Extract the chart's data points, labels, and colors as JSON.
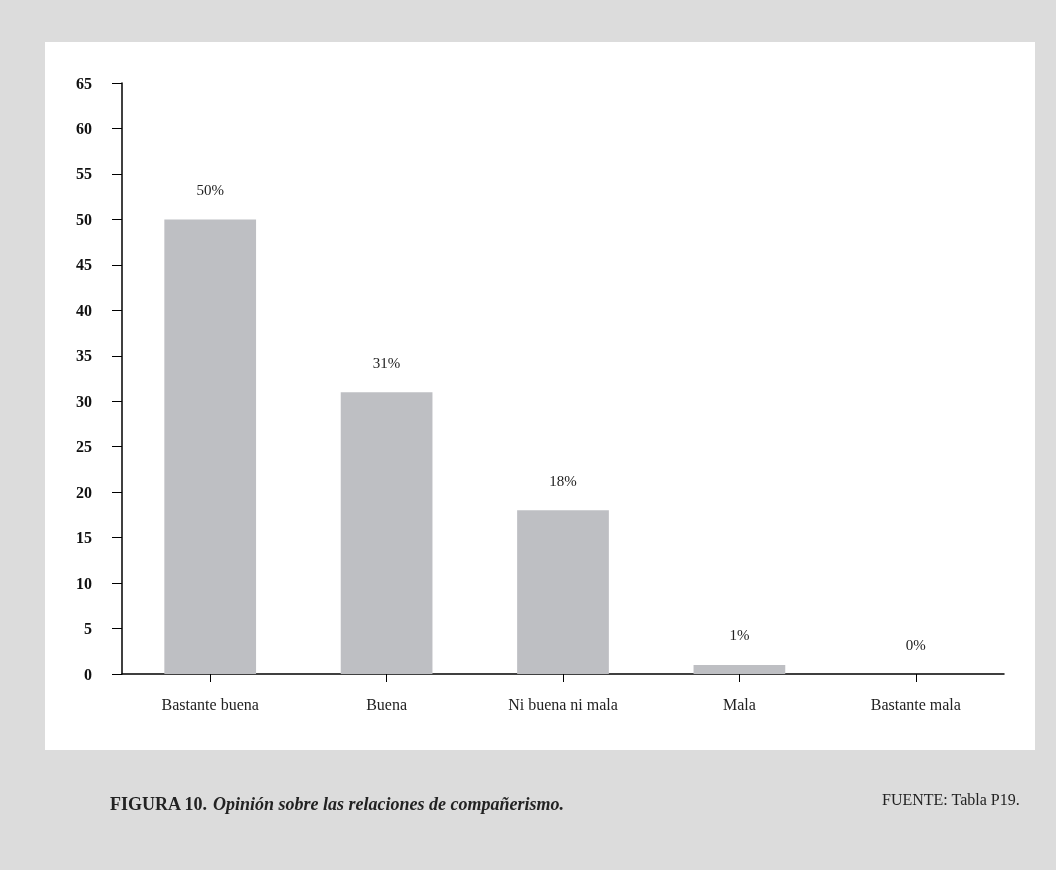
{
  "chart_data": {
    "type": "bar",
    "title": "FIGURA 10. Opinión sobre las relaciones de compañerismo.",
    "categories": [
      "Bastante buena",
      "Buena",
      "Ni buena ni mala",
      "Mala",
      "Bastante mala"
    ],
    "values": [
      50,
      31,
      18,
      1,
      0
    ],
    "value_labels": [
      "50%",
      "31%",
      "18%",
      "1%",
      "0%"
    ],
    "color": "#bebfc3",
    "ylim": [
      0,
      65
    ],
    "yticks": [
      0,
      5,
      10,
      15,
      20,
      25,
      30,
      35,
      40,
      45,
      50,
      55,
      60,
      65
    ],
    "grid": false,
    "annotations": [
      "FUENTE: Tabla P19."
    ]
  }
}
